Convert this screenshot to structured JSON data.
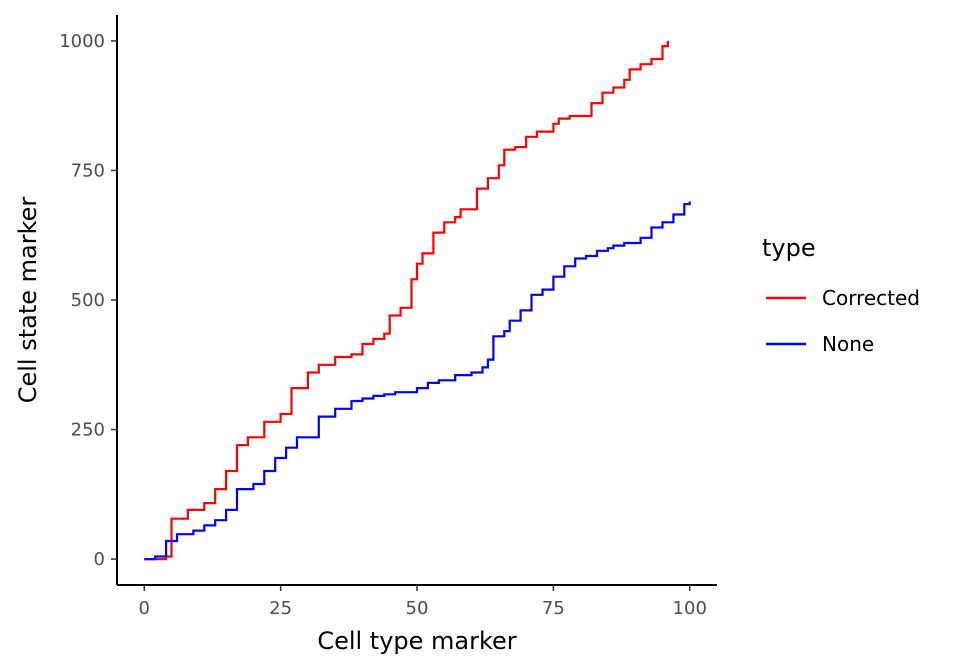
{
  "chart_data": {
    "type": "line",
    "step": true,
    "xlabel": "Cell type marker",
    "ylabel": "Cell state marker",
    "xlim": [
      -5,
      105
    ],
    "ylim": [
      -50,
      1050
    ],
    "x_ticks": [
      0,
      25,
      50,
      75,
      100
    ],
    "x_tick_labels": [
      "0",
      "25",
      "50",
      "75",
      "100"
    ],
    "y_ticks": [
      0,
      250,
      500,
      750,
      1000
    ],
    "y_tick_labels": [
      "0",
      "250",
      "500",
      "750",
      "1000"
    ],
    "grid": false,
    "legend": {
      "title": "type",
      "position": "right",
      "entries": [
        "Corrected",
        "None"
      ]
    },
    "series": [
      {
        "name": "Corrected",
        "color": "#ff0000",
        "x": [
          0,
          4,
          5,
          8,
          11,
          13,
          15,
          17,
          19,
          22,
          25,
          27,
          30,
          32,
          35,
          38,
          40,
          42,
          44,
          45,
          47,
          49,
          50,
          51,
          53,
          55,
          57,
          58,
          61,
          63,
          65,
          66,
          68,
          70,
          72,
          75,
          76,
          78,
          82,
          84,
          86,
          88,
          89,
          91,
          93,
          95,
          96
        ],
        "y": [
          0,
          5,
          78,
          95,
          108,
          135,
          170,
          220,
          235,
          265,
          280,
          330,
          360,
          375,
          390,
          395,
          415,
          425,
          435,
          470,
          485,
          540,
          570,
          590,
          630,
          650,
          660,
          675,
          715,
          735,
          760,
          790,
          795,
          815,
          825,
          840,
          850,
          855,
          880,
          900,
          910,
          925,
          945,
          955,
          965,
          990,
          1000
        ]
      },
      {
        "name": "None",
        "color": "#0000ff",
        "x": [
          0,
          2,
          4,
          6,
          9,
          11,
          13,
          15,
          17,
          20,
          22,
          24,
          26,
          28,
          32,
          35,
          38,
          40,
          42,
          44,
          46,
          50,
          52,
          54,
          57,
          60,
          62,
          63,
          64,
          66,
          67,
          69,
          71,
          73,
          75,
          77,
          79,
          81,
          83,
          85,
          86,
          88,
          91,
          93,
          95,
          97,
          99,
          100
        ],
        "y": [
          0,
          5,
          35,
          48,
          55,
          65,
          75,
          95,
          135,
          145,
          170,
          195,
          215,
          235,
          275,
          290,
          305,
          310,
          315,
          318,
          322,
          330,
          340,
          345,
          355,
          360,
          370,
          385,
          430,
          440,
          460,
          480,
          510,
          520,
          545,
          565,
          580,
          585,
          595,
          600,
          605,
          610,
          620,
          640,
          650,
          665,
          685,
          690
        ]
      }
    ]
  }
}
